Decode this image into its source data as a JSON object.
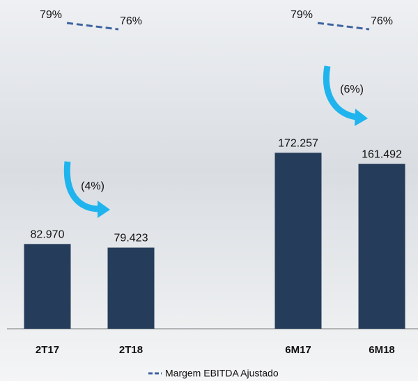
{
  "chart_data": {
    "type": "bar",
    "categories": [
      "2T17",
      "2T18",
      "6M17",
      "6M18"
    ],
    "values": [
      82970,
      79423,
      172257,
      161492
    ],
    "value_labels": [
      "82.970",
      "79.423",
      "172.257",
      "161.492"
    ],
    "color": "#253d5b",
    "ylim": [
      0,
      300000
    ],
    "series": [
      {
        "name": "Margem EBITDA Ajustado",
        "color": "#3e64a0",
        "axis": "y2",
        "values": [
          79,
          76,
          79,
          76
        ],
        "value_labels": [
          "79%",
          "76%",
          "79%",
          "76%"
        ]
      }
    ],
    "y2lim": [
      40,
      90
    ],
    "annotations": [
      "(4%)",
      "(6%)"
    ]
  }
}
